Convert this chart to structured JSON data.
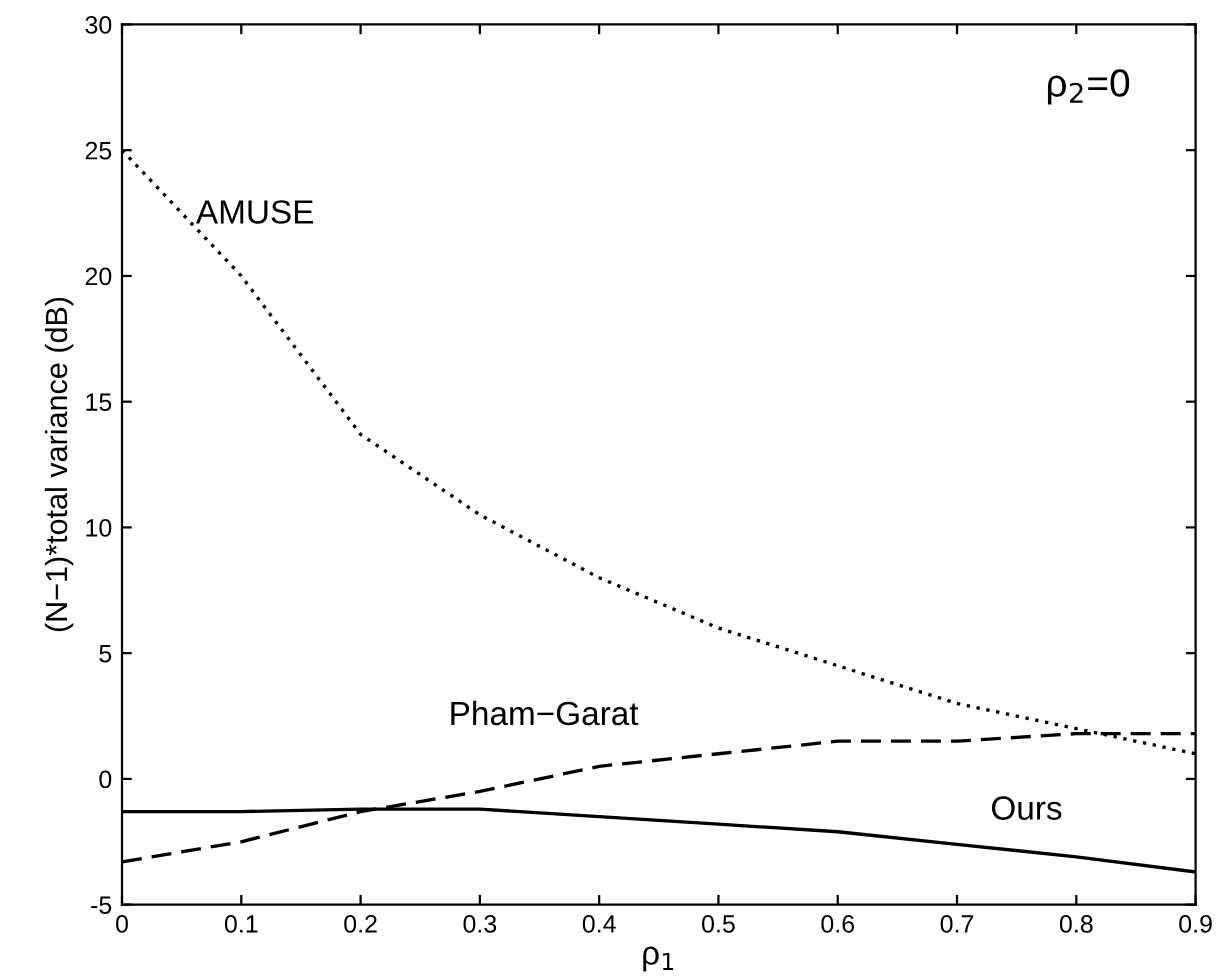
{
  "chart_data": {
    "type": "line",
    "xlabel": "ρ$_{1}$",
    "ylabel": "(N−1)*total variance (dB)",
    "annotations": [
      "ρ$_{2}$=0"
    ],
    "x": [
      0,
      0.1,
      0.2,
      0.3,
      0.4,
      0.5,
      0.6,
      0.7,
      0.8,
      0.9
    ],
    "series": [
      {
        "name": "AMUSE",
        "color": "#000000",
        "line_style": "dotted",
        "values": [
          25,
          20,
          13.7,
          10.5,
          8,
          6,
          4.5,
          3,
          2,
          1
        ]
      },
      {
        "name": "Pham−Garat",
        "color": "#000000",
        "line_style": "dashed",
        "values": [
          -3.3,
          -2.5,
          -1.3,
          -0.5,
          0.5,
          1,
          1.5,
          1.5,
          1.8,
          1.8
        ]
      },
      {
        "name": "Ours",
        "color": "#000000",
        "line_style": "solid",
        "values": [
          -1.3,
          -1.3,
          -1.2,
          -1.2,
          -1.5,
          -1.8,
          -2.1,
          -2.6,
          -3.1,
          -3.7
        ]
      }
    ],
    "xlim": [
      0,
      0.9
    ],
    "ylim": [
      -5,
      30
    ],
    "xticks": [
      0,
      0.1,
      0.2,
      0.3,
      0.4,
      0.5,
      0.6,
      0.7,
      0.8,
      0.9
    ],
    "yticks": [
      -5,
      0,
      5,
      10,
      15,
      20,
      25,
      30
    ],
    "grid": false,
    "legend": false
  }
}
